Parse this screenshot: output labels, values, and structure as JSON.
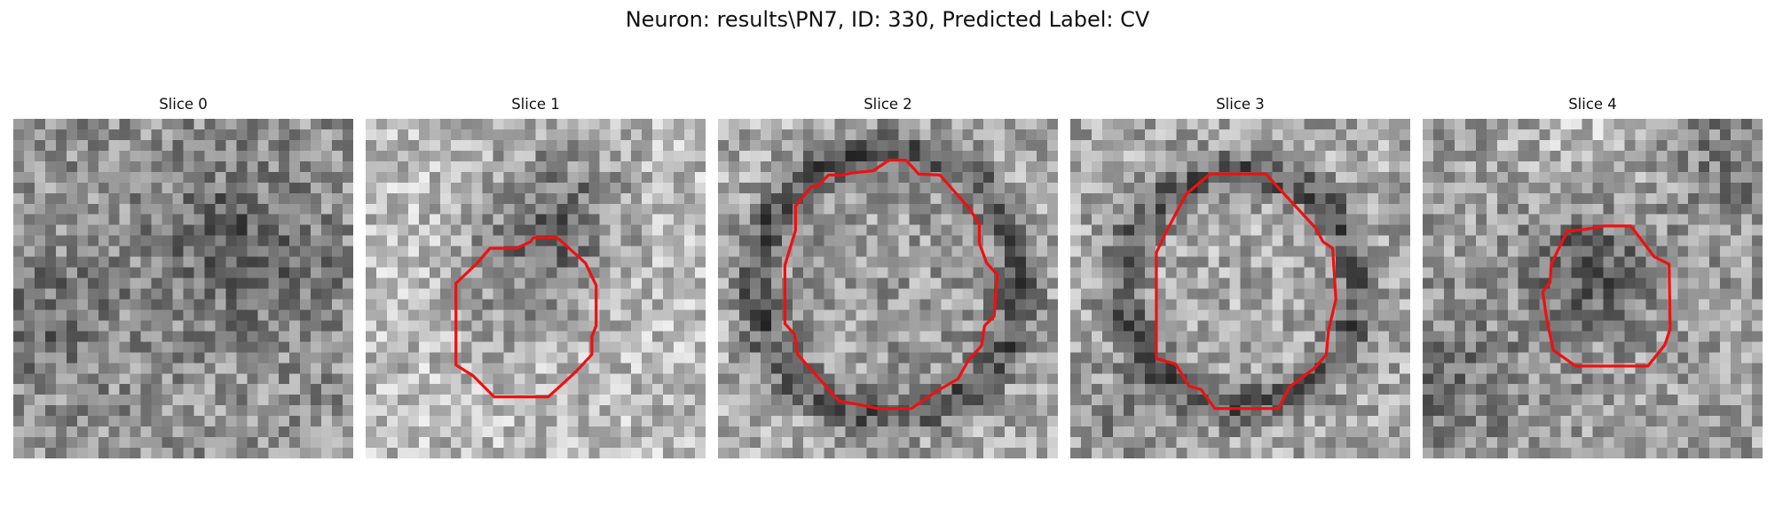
{
  "figure": {
    "title": "Neuron: results\\PN7, ID: 330, Predicted Label: CV",
    "slices": [
      {
        "label": "Slice 0",
        "has_contour": false,
        "background": "medium-grey-noise"
      },
      {
        "label": "Slice 1",
        "has_contour": true,
        "background": "light-grey-noise"
      },
      {
        "label": "Slice 2",
        "has_contour": true,
        "background": "ring-shaped-vesicle"
      },
      {
        "label": "Slice 3",
        "has_contour": true,
        "background": "ring-shaped-vesicle"
      },
      {
        "label": "Slice 4",
        "has_contour": true,
        "background": "dark-center-vesicle"
      }
    ],
    "contour_color": "#ee1111",
    "colormap": "grayscale"
  }
}
